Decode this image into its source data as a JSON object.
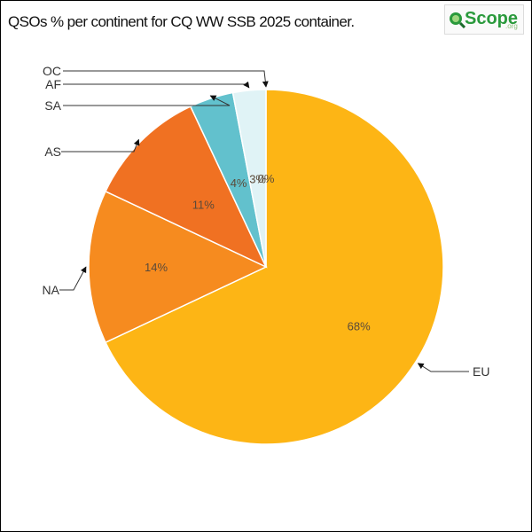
{
  "title": "QSOs % per continent for CQ WW SSB 2025 container.",
  "logo": {
    "text": "Scope",
    "suffix": ".org"
  },
  "chart_data": {
    "type": "pie",
    "title": "QSOs % per continent for CQ WW SSB 2025 container.",
    "categories": [
      "EU",
      "NA",
      "AS",
      "SA",
      "AF",
      "OC"
    ],
    "values": [
      68,
      14,
      11,
      4,
      3,
      0
    ],
    "data_labels": [
      "68%",
      "14%",
      "11%",
      "4%",
      "3%",
      "0%"
    ],
    "colors": [
      "#FDB515",
      "#F68B1F",
      "#F07122",
      "#62C1CD",
      "#E0F3F6",
      "#E0F3F6"
    ]
  },
  "colors": {
    "line": "#333333",
    "slice_border": "#ffffff"
  }
}
